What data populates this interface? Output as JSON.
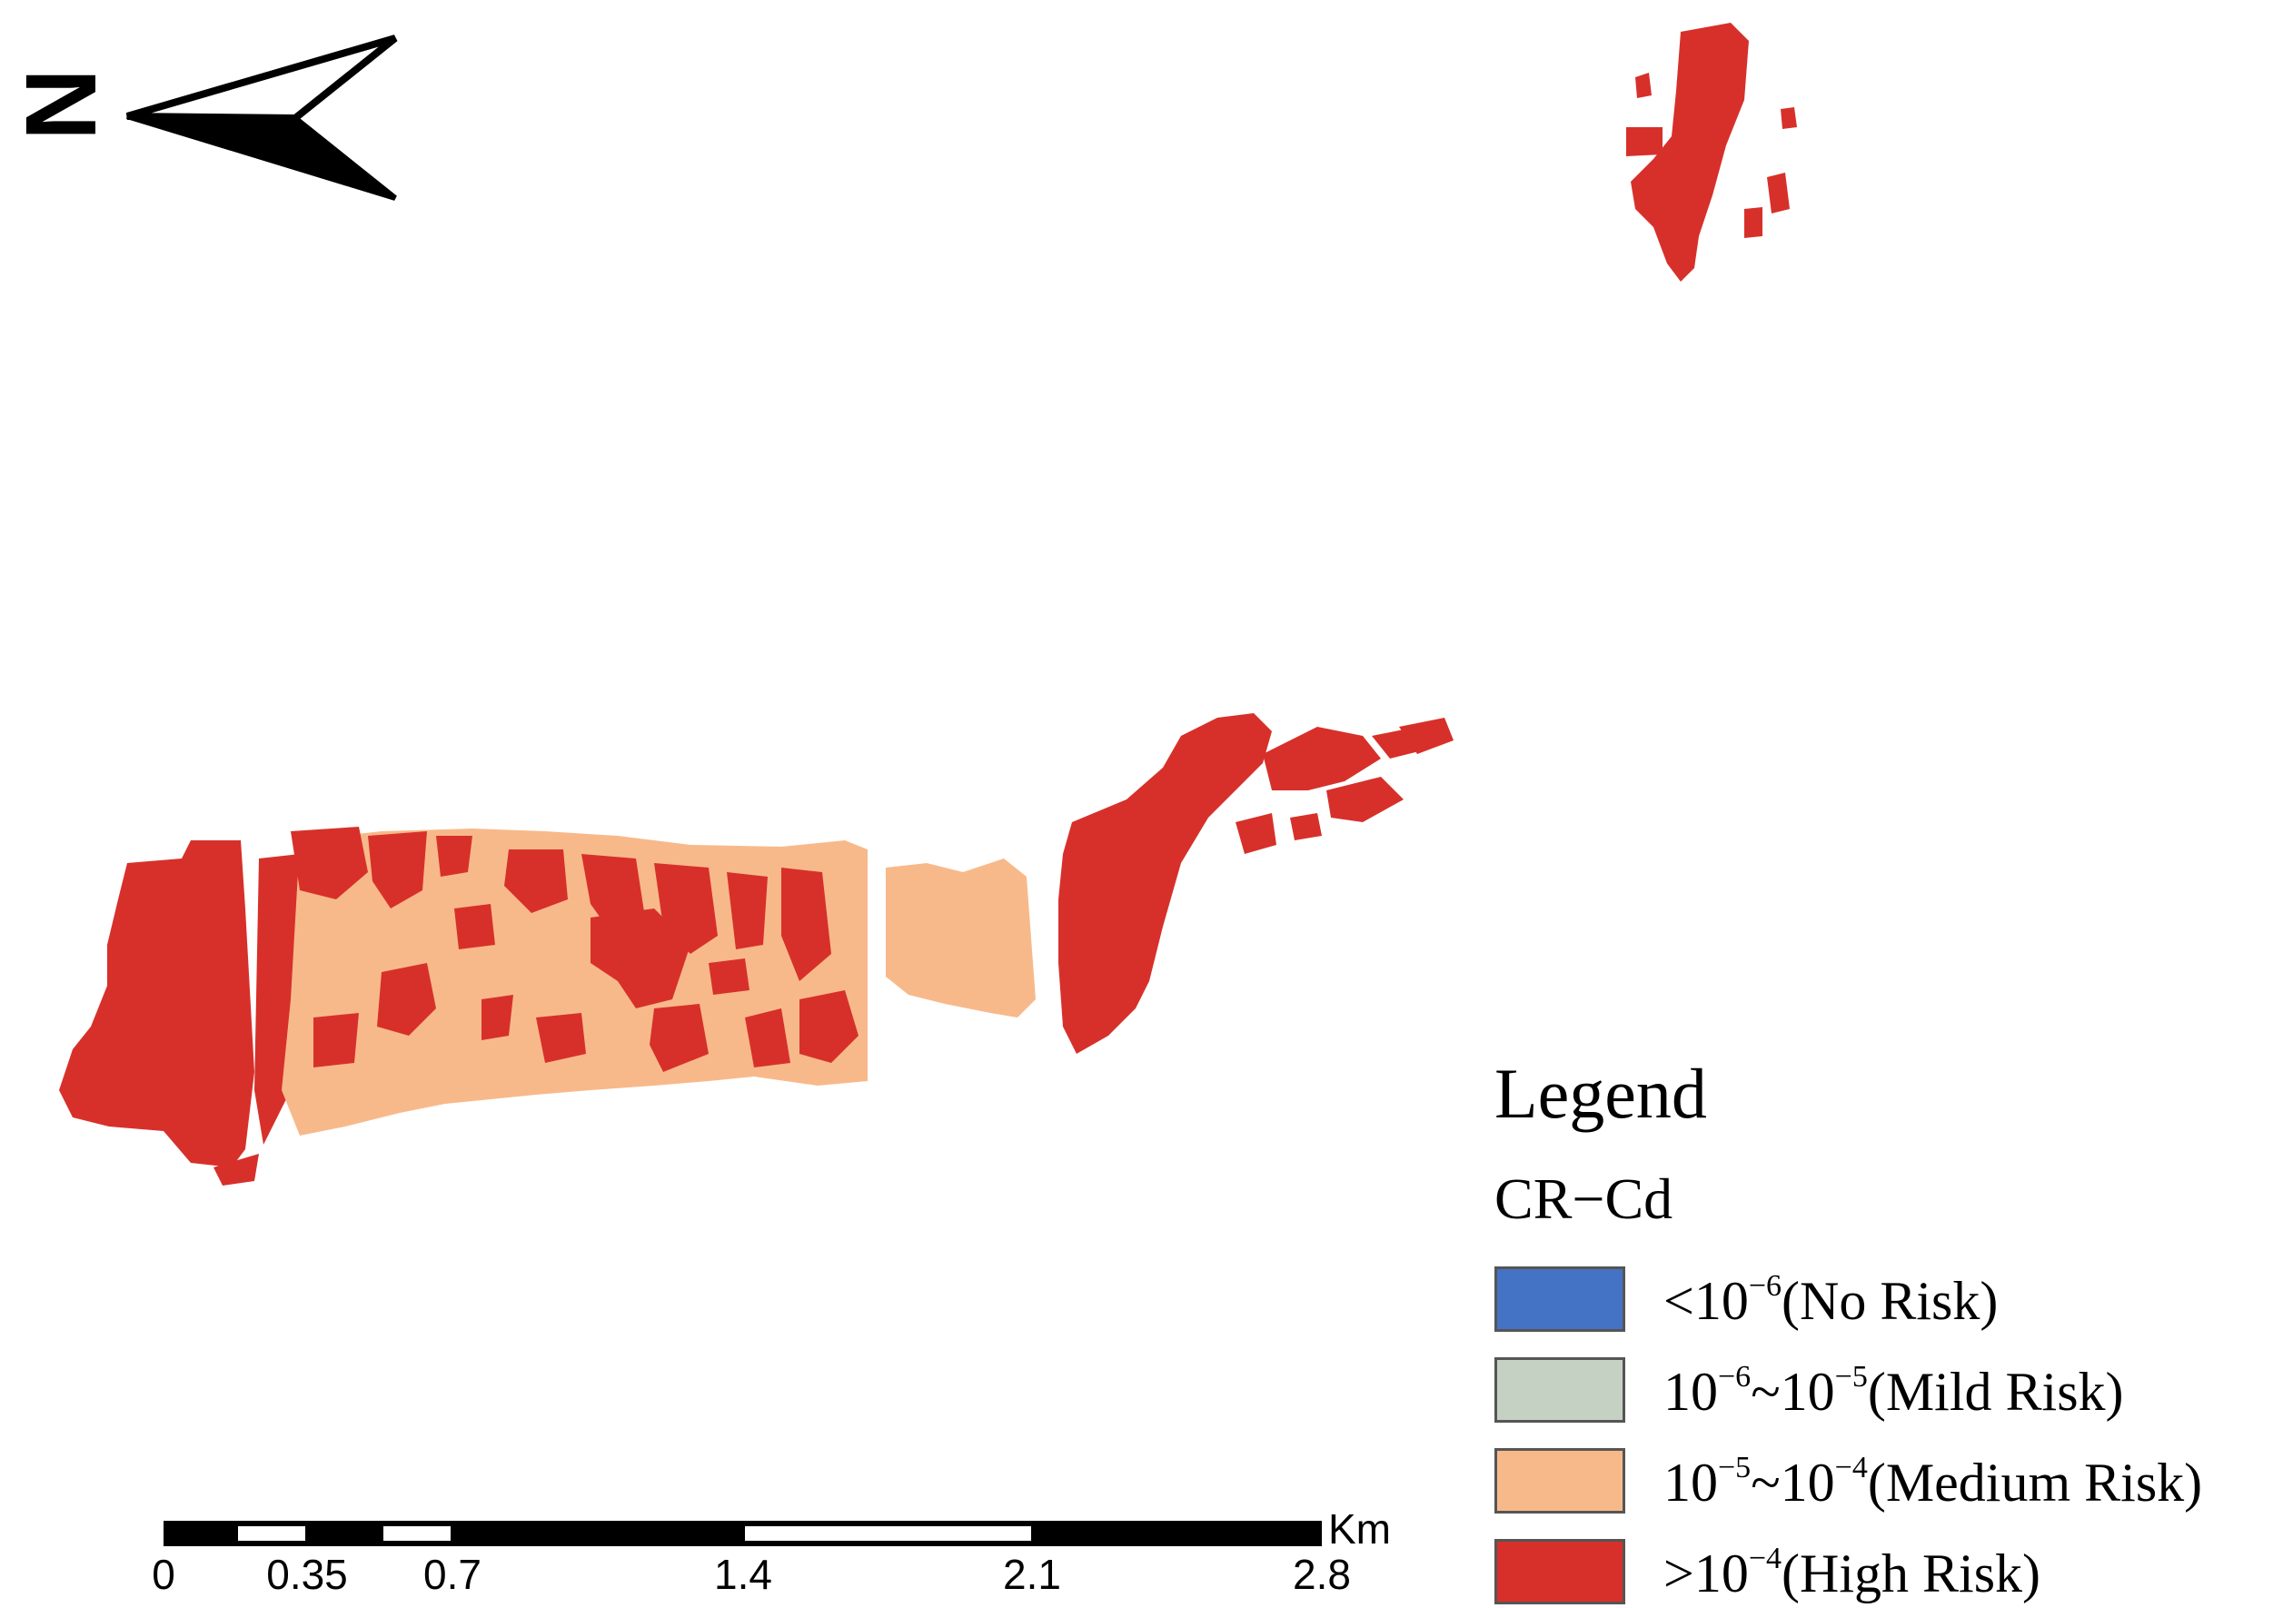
{
  "north_arrow": {
    "label": "N",
    "icon": "north-arrow-icon"
  },
  "colors": {
    "no_risk": "#4472c4",
    "mild_risk": "#c5d1c3",
    "medium_risk": "#f8b98a",
    "high_risk": "#d7302a"
  },
  "legend": {
    "title": "Legend",
    "subtitle": "CR−Cd",
    "items": [
      {
        "symbol": "<",
        "base": "10",
        "exp": "−6",
        "mid": "",
        "base2": "",
        "exp2": "",
        "desc": "(No Risk)",
        "color": "#4472c4"
      },
      {
        "symbol": "",
        "base": "10",
        "exp": "−6",
        "mid": "~",
        "base2": "10",
        "exp2": "−5",
        "desc": "(Mild Risk)",
        "color": "#c5d1c3"
      },
      {
        "symbol": "",
        "base": "10",
        "exp": "−5",
        "mid": "~",
        "base2": "10",
        "exp2": "−4",
        "desc": "(Medium Risk)",
        "color": "#f8b98a"
      },
      {
        "symbol": ">",
        "base": "10",
        "exp": "−4",
        "mid": "",
        "base2": "",
        "exp2": "",
        "desc": "(High Risk)",
        "color": "#d7302a"
      }
    ]
  },
  "scale_bar": {
    "unit": "Km",
    "ticks": [
      "0",
      "0.35",
      "0.7",
      "1.4",
      "2.1",
      "2.8"
    ]
  }
}
